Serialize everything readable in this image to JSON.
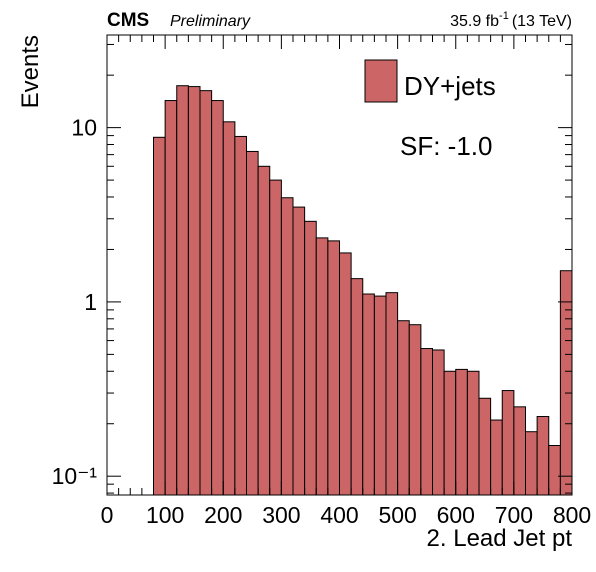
{
  "chart_data": {
    "type": "histogram",
    "experiment": "CMS",
    "status": "Preliminary",
    "lumi": {
      "text": "35.9 fb",
      "sup": "-1",
      "energy": "(13 TeV)"
    },
    "xlabel": "2. Lead Jet pt",
    "ylabel": "Events",
    "annotation": "SF: -1.0",
    "series": [
      {
        "name": "DY+jets",
        "color": "#cc6666",
        "bins": [
          80,
          100,
          120,
          140,
          160,
          180,
          200,
          220,
          240,
          260,
          280,
          300,
          320,
          340,
          360,
          380,
          400,
          420,
          440,
          460,
          480,
          500,
          520,
          540,
          560,
          580,
          600,
          620,
          640,
          660,
          680,
          700,
          720,
          740,
          760,
          780,
          800
        ],
        "values": [
          8.8,
          14.3,
          17.4,
          17.2,
          16.3,
          14.3,
          10.8,
          8.9,
          7.3,
          6.0,
          5.0,
          3.96,
          3.5,
          2.9,
          2.33,
          2.24,
          1.91,
          1.36,
          1.11,
          1.08,
          1.13,
          0.78,
          0.74,
          0.54,
          0.53,
          0.4,
          0.41,
          0.4,
          0.28,
          0.21,
          0.31,
          0.25,
          0.18,
          0.22,
          0.15,
          1.51
        ]
      }
    ],
    "xlim": [
      0,
      800
    ],
    "xticks": [
      0,
      100,
      200,
      300,
      400,
      500,
      600,
      700,
      800
    ],
    "ylim": [
      0.078,
      34
    ],
    "yticks": [
      {
        "value": 0.1,
        "label": "10⁻¹"
      },
      1,
      10
    ],
    "log_y": true,
    "legend": "upper right"
  }
}
